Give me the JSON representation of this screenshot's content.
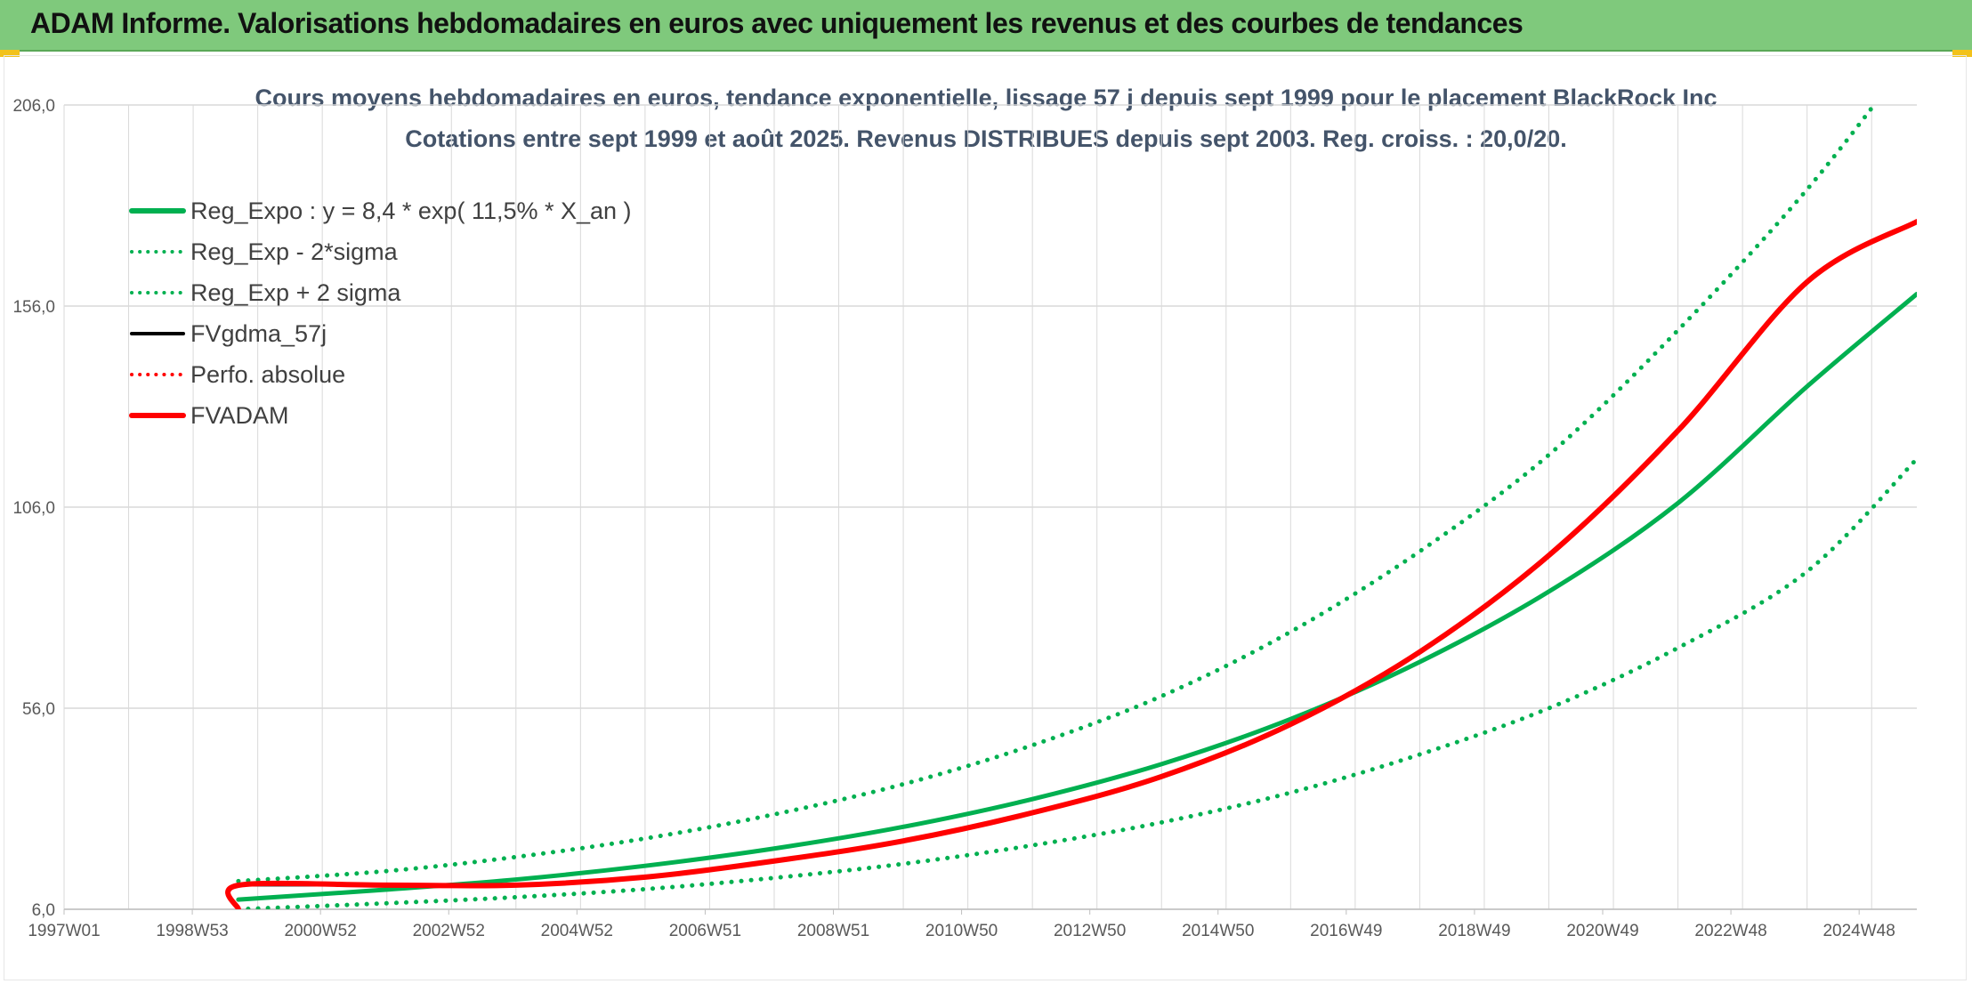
{
  "header": {
    "title": "ADAM Informe. Valorisations hebdomadaires en euros avec uniquement les revenus et des courbes de tendances"
  },
  "colors": {
    "header_bg": "#7fc97c",
    "trend_green": "#00b050",
    "fvadam_red": "#ff0000",
    "fvgdma_black": "#000000",
    "title_text": "#44546a",
    "grid": "#d9d9d9"
  },
  "chart_data": {
    "type": "line",
    "title": "Cours moyens hebdomadaires en euros, tendance exponentielle, lissage 57 j depuis sept 1999 pour le placement BlackRock Inc",
    "subtitle": "Cotations entre sept 1999 et août 2025. Revenus DISTRIBUES depuis sept 2003. Reg. croiss. : 20,0/20.",
    "xlabel": "",
    "ylabel": "",
    "ylim": [
      6,
      206
    ],
    "x_range": [
      1997.0,
      2025.7
    ],
    "grid": "on",
    "legend_placement": "top-left",
    "x_tick_labels": [
      "1997W01",
      "1998W53",
      "2000W52",
      "2002W52",
      "2004W52",
      "2006W51",
      "2008W51",
      "2010W50",
      "2012W50",
      "2014W50",
      "2016W49",
      "2018W49",
      "2020W49",
      "2022W48",
      "2024W48"
    ],
    "y_tick_labels": [
      "6,0",
      "56,0",
      "106,0",
      "156,0",
      "206,0"
    ],
    "y_ticks": [
      6,
      56,
      106,
      156,
      206
    ],
    "legend": [
      {
        "name": "Reg_Expo : y = 8,4 * exp( 11,5% *  X_an )",
        "style": "solid",
        "color": "#00b050"
      },
      {
        "name": "Reg_Exp - 2*sigma",
        "style": "dotted",
        "color": "#00b050"
      },
      {
        "name": "Reg_Exp + 2 sigma",
        "style": "dotted",
        "color": "#00b050"
      },
      {
        "name": "FVgdma_57j",
        "style": "solid",
        "color": "#000000"
      },
      {
        "name": "Perfo. absolue",
        "style": "dotted",
        "color": "#ff0000"
      },
      {
        "name": "FVADAM",
        "style": "solid",
        "color": "#ff0000"
      }
    ],
    "series": [
      {
        "name": "Reg_Expo : y = 8,4 * exp( 11,5% *  X_an )",
        "x": [
          1999.7,
          2002,
          2004,
          2006,
          2008,
          2010,
          2012,
          2014,
          2016,
          2018,
          2020,
          2022,
          2024,
          2025.7
        ],
        "values": [
          8.4,
          10.9,
          13.4,
          16.8,
          21.1,
          26.5,
          33.4,
          42.1,
          53.3,
          67.5,
          85.0,
          107.0,
          136.0,
          159.0
        ]
      },
      {
        "name": "Reg_Exp - 2*sigma",
        "x": [
          1999.7,
          2002,
          2004,
          2006,
          2008,
          2010,
          2012,
          2014,
          2016,
          2018,
          2020,
          2022,
          2024,
          2025.7
        ],
        "values": [
          6.0,
          7.5,
          9.0,
          11.0,
          13.8,
          17.3,
          21.9,
          27.6,
          35.0,
          44.5,
          56.0,
          71.0,
          90.0,
          118.0
        ]
      },
      {
        "name": "Reg_Exp + 2 sigma",
        "x": [
          1999.7,
          2002,
          2004,
          2006,
          2008,
          2010,
          2012,
          2014,
          2016,
          2018,
          2020,
          2022,
          2024,
          2025.7
        ],
        "values": [
          13.0,
          15.5,
          19.0,
          23.6,
          29.6,
          37.1,
          46.8,
          59.0,
          75.0,
          95.0,
          119.0,
          150.0,
          185.0,
          220.0
        ]
      },
      {
        "name": "FVgdma_57j",
        "x": [
          1999.7,
          2002,
          2004,
          2006,
          2008,
          2010,
          2012,
          2014,
          2016,
          2018,
          2020,
          2022,
          2024,
          2025.7
        ],
        "values": [
          12.0,
          12.0,
          12.0,
          14.0,
          18.0,
          23.0,
          30.0,
          39.0,
          52.0,
          70.0,
          94.0,
          125.0,
          162.0,
          177.0
        ]
      },
      {
        "name": "FVADAM",
        "x": [
          1999.7,
          1999.71,
          2002,
          2004,
          2006,
          2008,
          2010,
          2012,
          2014,
          2016,
          2018,
          2020,
          2022,
          2024,
          2025.7
        ],
        "values": [
          6.0,
          12.0,
          12.0,
          12.0,
          14.0,
          18.0,
          23.0,
          30.0,
          39.0,
          52.0,
          70.0,
          94.0,
          125.0,
          162.0,
          177.0
        ]
      }
    ]
  }
}
